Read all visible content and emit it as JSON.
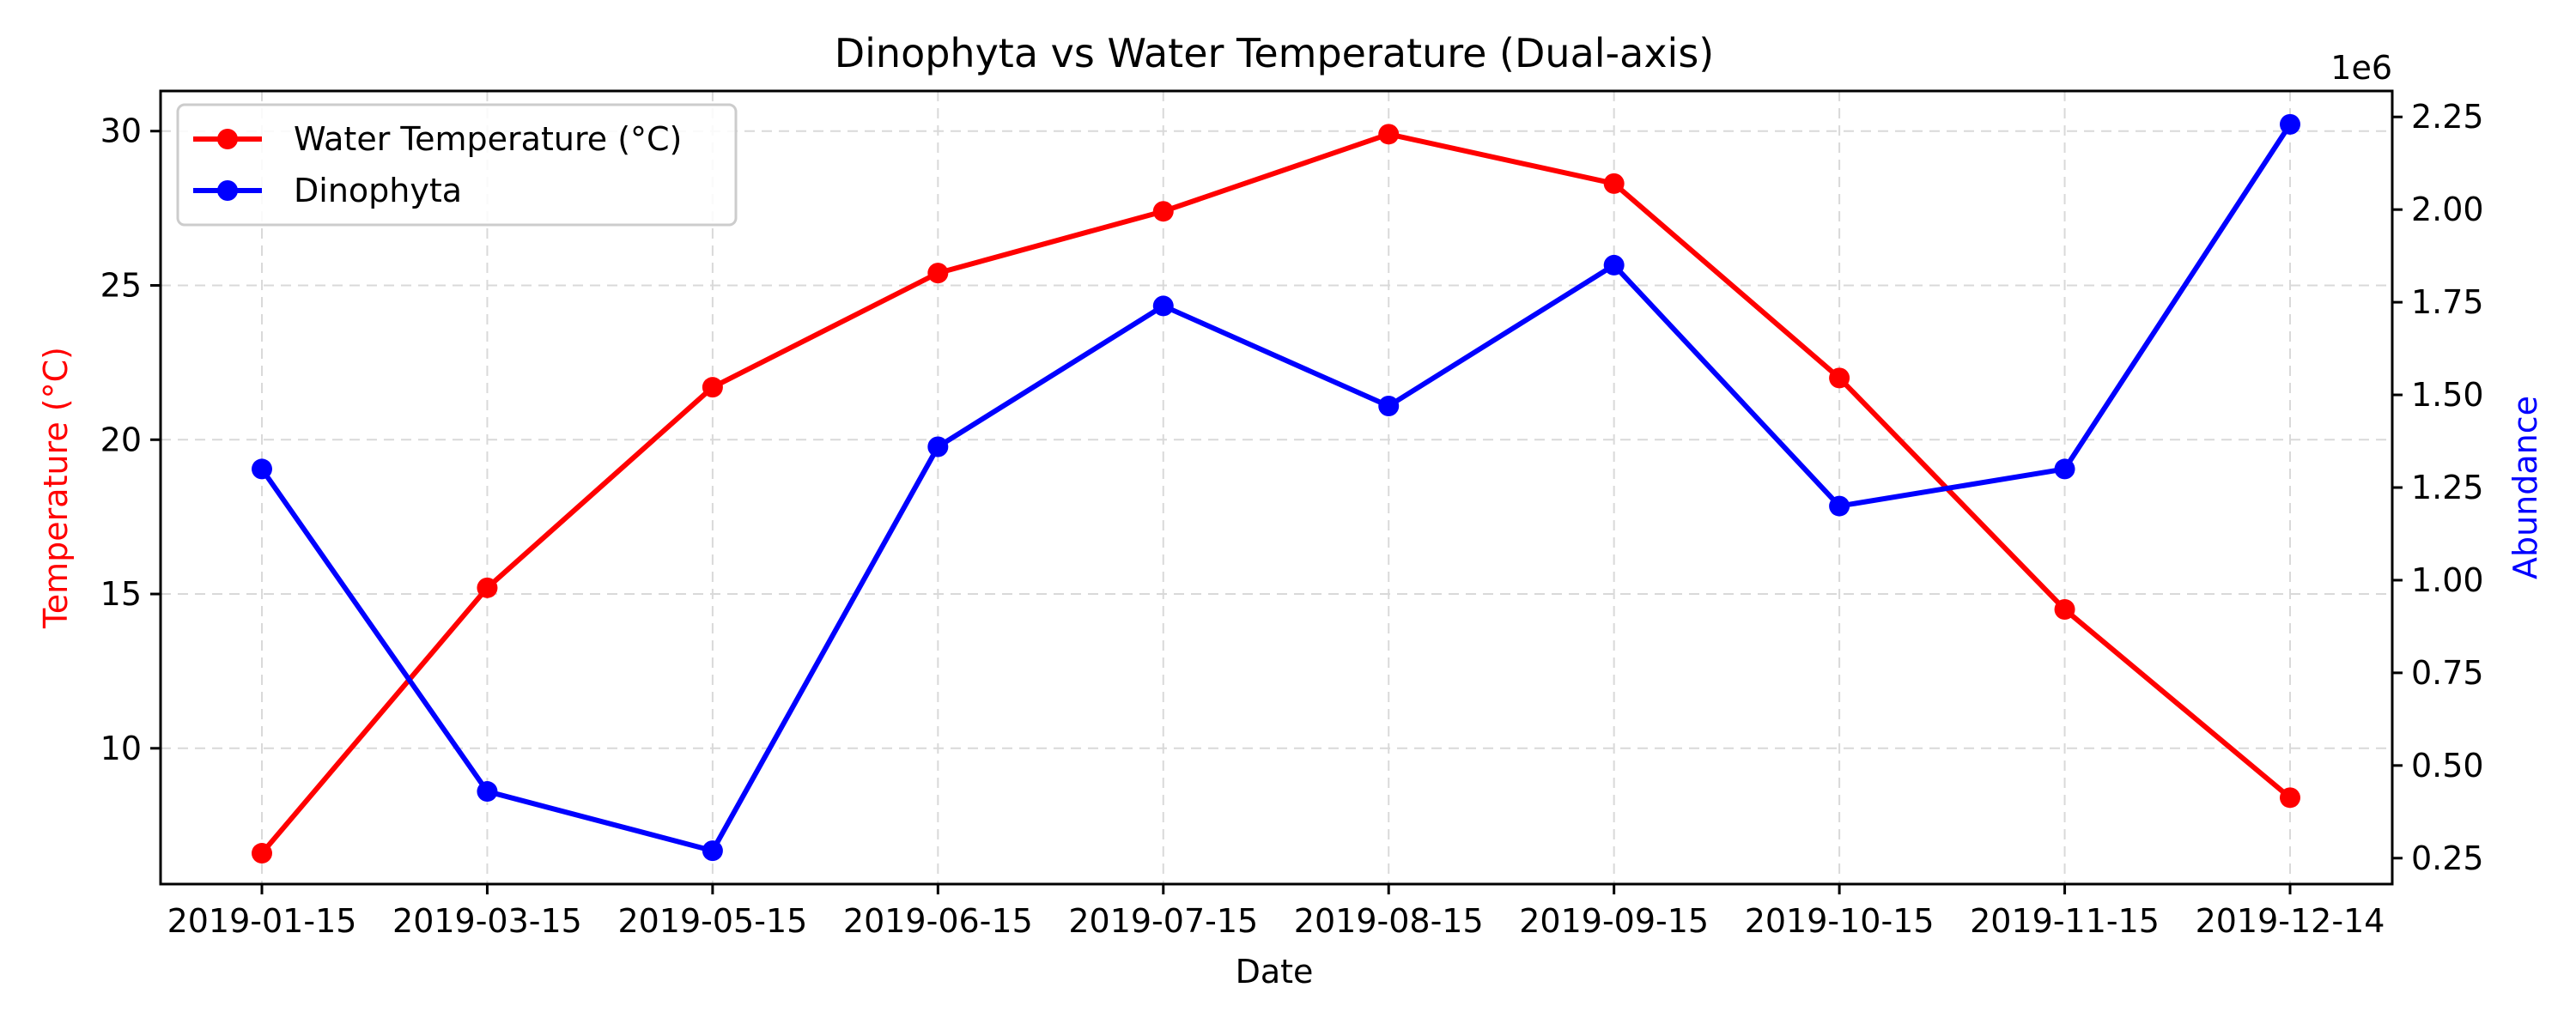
{
  "chart_data": {
    "type": "line",
    "title": "Dinophyta vs Water Temperature (Dual-axis)",
    "xlabel": "Date",
    "ylabel_left": "Temperature (°C)",
    "ylabel_right": "Abundance",
    "right_axis_multiplier": "1e6",
    "categories": [
      "2019-01-15",
      "2019-03-15",
      "2019-05-15",
      "2019-06-15",
      "2019-07-15",
      "2019-08-15",
      "2019-09-15",
      "2019-10-15",
      "2019-11-15",
      "2019-12-14"
    ],
    "ylim_left": [
      5.6,
      31.3
    ],
    "ylim_right": [
      0.18,
      2.32
    ],
    "yticks_left": [
      10,
      15,
      20,
      25,
      30
    ],
    "yticks_right": [
      "0.25",
      "0.50",
      "0.75",
      "1.00",
      "1.25",
      "1.50",
      "1.75",
      "2.00",
      "2.25"
    ],
    "grid": true,
    "legend_position": "upper-left",
    "series": [
      {
        "name": "Water Temperature (°C)",
        "axis": "left",
        "color": "#ff0000",
        "values": [
          6.6,
          15.2,
          21.7,
          25.4,
          27.4,
          29.9,
          28.3,
          22.0,
          14.5,
          8.4
        ]
      },
      {
        "name": "Dinophyta",
        "axis": "right",
        "color": "#0000ff",
        "values": [
          1.3,
          0.43,
          0.27,
          1.36,
          1.74,
          1.47,
          1.85,
          1.2,
          1.3,
          2.23
        ]
      }
    ],
    "left_label_color": "#ff0000",
    "right_label_color": "#0000ff"
  }
}
